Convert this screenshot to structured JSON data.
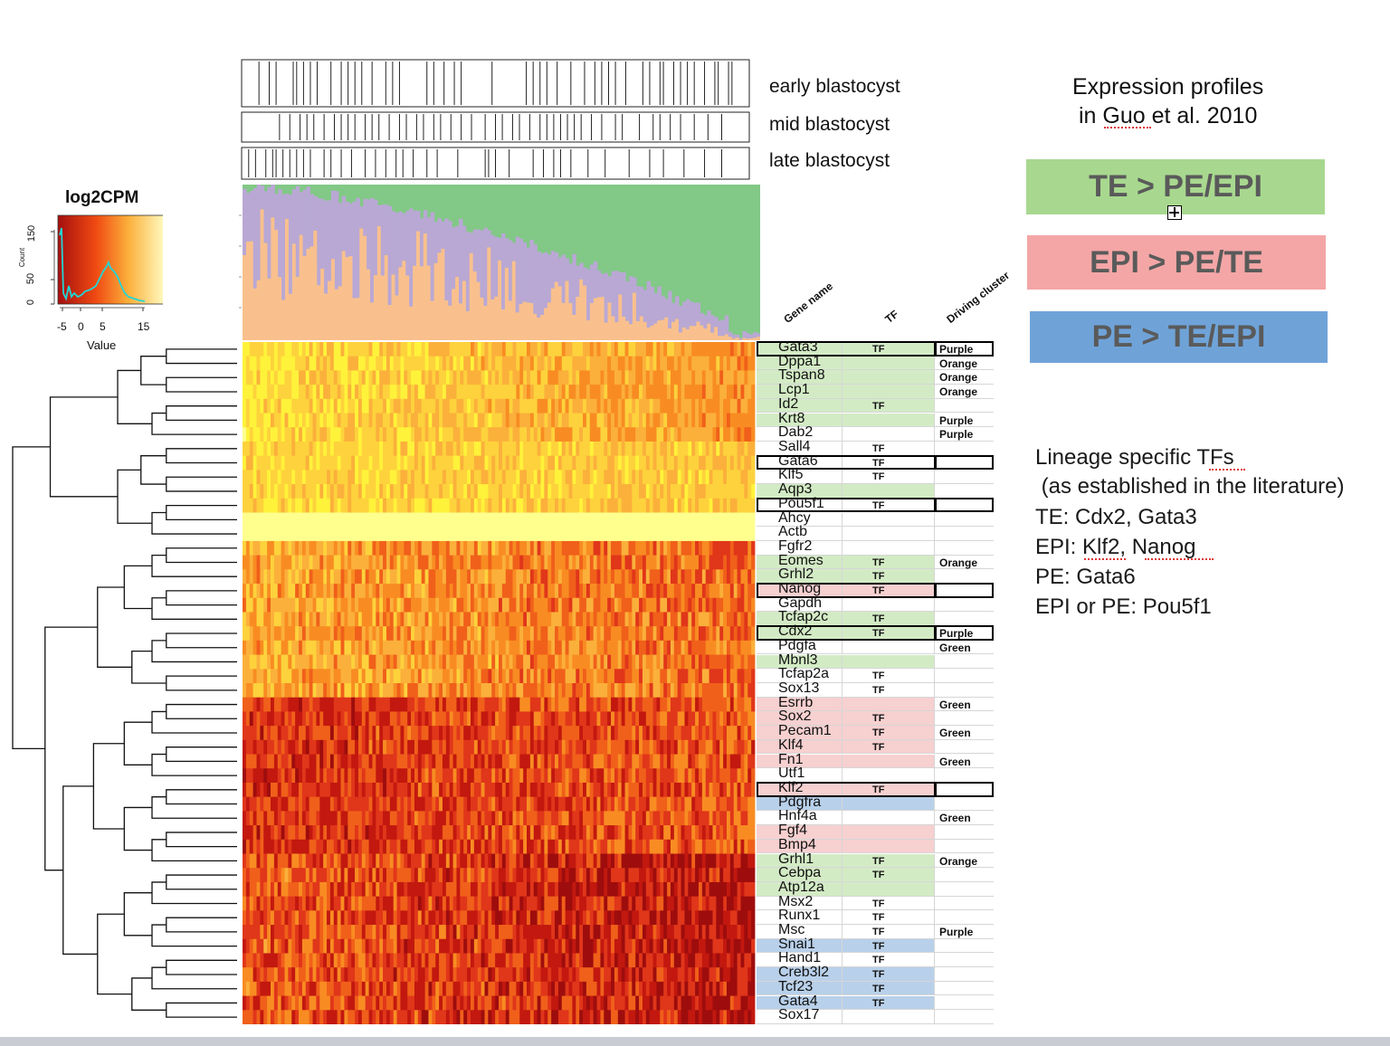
{
  "legend": {
    "title": "log2CPM",
    "xlabel": "Value",
    "ylabel": "Count",
    "xticks": [
      "-5",
      "0",
      "5",
      "15"
    ],
    "yticks": [
      "0",
      "50",
      "150"
    ]
  },
  "stages": [
    {
      "label": "early blastocyst",
      "ticks": [
        4,
        7,
        9,
        14,
        15,
        17,
        19,
        21,
        25,
        28,
        30,
        32,
        34,
        37,
        41,
        43,
        45,
        53,
        55,
        58,
        61,
        63,
        72,
        82,
        84,
        86,
        88,
        91,
        95,
        99,
        102,
        104,
        106,
        108,
        111,
        116,
        118,
        121,
        122,
        125,
        127,
        129,
        131,
        134,
        137,
        138,
        141,
        142
      ]
    },
    {
      "label": "mid blastocyst",
      "ticks": [
        10,
        13,
        16,
        18,
        20,
        23,
        26,
        28,
        30,
        32,
        35,
        37,
        39,
        42,
        45,
        47,
        50,
        52,
        55,
        57,
        60,
        63,
        66,
        70,
        73,
        75,
        78,
        80,
        83,
        86,
        88,
        90,
        92,
        94,
        96,
        98,
        101,
        104,
        108,
        110,
        115,
        119,
        121,
        124,
        127,
        131,
        135,
        139
      ]
    },
    {
      "label": "late blastocyst",
      "ticks": [
        1,
        3,
        6,
        8,
        9,
        11,
        13,
        15,
        17,
        19,
        23,
        25,
        28,
        31,
        35,
        38,
        41,
        44,
        46,
        49,
        53,
        56,
        62,
        70,
        71,
        73,
        77,
        84,
        87,
        90,
        92,
        95,
        100,
        105,
        112,
        118,
        122,
        128,
        134,
        139
      ]
    }
  ],
  "title_box": {
    "line1": "Expression profiles",
    "line2": "in Guo et al. 2010"
  },
  "category_boxes": [
    {
      "label": "TE > PE/EPI",
      "color": "#a8d88f"
    },
    {
      "label": "EPI > PE/TE",
      "color": "#f4a6a6"
    },
    {
      "label": "PE > TE/EPI",
      "color": "#6fa3d8"
    }
  ],
  "notes": [
    "Lineage specific TFs",
    " (as established in the literature)",
    "TE: Cdx2, Gata3",
    "EPI: Klf2, Nanog",
    "PE: Gata6",
    "EPI or PE: Pou5f1"
  ],
  "column_headers": [
    "Gene name",
    "TF",
    "Driving cluster"
  ],
  "colors": {
    "TE": "#d3ebc5",
    "EPI": "#f7d0d0",
    "PE": "#b8d0ea",
    "purple": "#b9a8d4",
    "orange": "#f9c08e",
    "green": "#82c886"
  },
  "chart_data": {
    "type": "heatmap",
    "title": "",
    "color_scale": "log2CPM",
    "genes": [
      {
        "name": "Gata3",
        "tf": "TF",
        "cluster": "Purple",
        "group": "TE",
        "boxed": true
      },
      {
        "name": "Dppa1",
        "tf": "",
        "cluster": "Orange",
        "group": "TE",
        "boxed": false
      },
      {
        "name": "Tspan8",
        "tf": "",
        "cluster": "Orange",
        "group": "TE",
        "boxed": false
      },
      {
        "name": "Lcp1",
        "tf": "",
        "cluster": "Orange",
        "group": "TE",
        "boxed": false
      },
      {
        "name": "Id2",
        "tf": "TF",
        "cluster": "",
        "group": "TE",
        "boxed": false
      },
      {
        "name": "Krt8",
        "tf": "",
        "cluster": "Purple",
        "group": "TE",
        "boxed": false
      },
      {
        "name": "Dab2",
        "tf": "",
        "cluster": "Purple",
        "group": "",
        "boxed": false
      },
      {
        "name": "Sall4",
        "tf": "TF",
        "cluster": "",
        "group": "",
        "boxed": false
      },
      {
        "name": "Gata6",
        "tf": "TF",
        "cluster": "",
        "group": "",
        "boxed": true
      },
      {
        "name": "Klf5",
        "tf": "TF",
        "cluster": "",
        "group": "",
        "boxed": false
      },
      {
        "name": "Aqp3",
        "tf": "",
        "cluster": "",
        "group": "TE",
        "boxed": false
      },
      {
        "name": "Pou5f1",
        "tf": "TF",
        "cluster": "",
        "group": "",
        "boxed": true
      },
      {
        "name": "Ahcy",
        "tf": "",
        "cluster": "",
        "group": "",
        "boxed": false
      },
      {
        "name": "Actb",
        "tf": "",
        "cluster": "",
        "group": "",
        "boxed": false
      },
      {
        "name": "Fgfr2",
        "tf": "",
        "cluster": "",
        "group": "",
        "boxed": false
      },
      {
        "name": "Eomes",
        "tf": "TF",
        "cluster": "Orange",
        "group": "TE",
        "boxed": false
      },
      {
        "name": "Grhl2",
        "tf": "TF",
        "cluster": "",
        "group": "TE",
        "boxed": false
      },
      {
        "name": "Nanog",
        "tf": "TF",
        "cluster": "",
        "group": "EPI",
        "boxed": true
      },
      {
        "name": "Gapdh",
        "tf": "",
        "cluster": "",
        "group": "",
        "boxed": false
      },
      {
        "name": "Tcfap2c",
        "tf": "TF",
        "cluster": "",
        "group": "TE",
        "boxed": false
      },
      {
        "name": "Cdx2",
        "tf": "TF",
        "cluster": "Purple",
        "group": "TE",
        "boxed": true
      },
      {
        "name": "Pdgfa",
        "tf": "",
        "cluster": "Green",
        "group": "",
        "boxed": false
      },
      {
        "name": "Mbnl3",
        "tf": "",
        "cluster": "",
        "group": "TE",
        "boxed": false
      },
      {
        "name": "Tcfap2a",
        "tf": "TF",
        "cluster": "",
        "group": "",
        "boxed": false
      },
      {
        "name": "Sox13",
        "tf": "TF",
        "cluster": "",
        "group": "",
        "boxed": false
      },
      {
        "name": "Esrrb",
        "tf": "",
        "cluster": "Green",
        "group": "EPI",
        "boxed": false
      },
      {
        "name": "Sox2",
        "tf": "TF",
        "cluster": "",
        "group": "EPI",
        "boxed": false
      },
      {
        "name": "Pecam1",
        "tf": "TF",
        "cluster": "Green",
        "group": "EPI",
        "boxed": false
      },
      {
        "name": "Klf4",
        "tf": "TF",
        "cluster": "",
        "group": "EPI",
        "boxed": false
      },
      {
        "name": "Fn1",
        "tf": "",
        "cluster": "Green",
        "group": "EPI",
        "boxed": false
      },
      {
        "name": "Utf1",
        "tf": "",
        "cluster": "",
        "group": "",
        "boxed": false
      },
      {
        "name": "Klf2",
        "tf": "TF",
        "cluster": "",
        "group": "EPI",
        "boxed": true
      },
      {
        "name": "Pdgfra",
        "tf": "",
        "cluster": "",
        "group": "PE",
        "boxed": false
      },
      {
        "name": "Hnf4a",
        "tf": "",
        "cluster": "Green",
        "group": "",
        "boxed": false
      },
      {
        "name": "Fgf4",
        "tf": "",
        "cluster": "",
        "group": "EPI",
        "boxed": false
      },
      {
        "name": "Bmp4",
        "tf": "",
        "cluster": "",
        "group": "EPI",
        "boxed": false
      },
      {
        "name": "Grhl1",
        "tf": "TF",
        "cluster": "Orange",
        "group": "TE",
        "boxed": false
      },
      {
        "name": "Cebpa",
        "tf": "TF",
        "cluster": "",
        "group": "TE",
        "boxed": false
      },
      {
        "name": "Atp12a",
        "tf": "",
        "cluster": "",
        "group": "TE",
        "boxed": false
      },
      {
        "name": "Msx2",
        "tf": "TF",
        "cluster": "",
        "group": "",
        "boxed": false
      },
      {
        "name": "Runx1",
        "tf": "TF",
        "cluster": "",
        "group": "",
        "boxed": false
      },
      {
        "name": "Msc",
        "tf": "TF",
        "cluster": "Purple",
        "group": "",
        "boxed": false
      },
      {
        "name": "Snai1",
        "tf": "TF",
        "cluster": "",
        "group": "PE",
        "boxed": false
      },
      {
        "name": "Hand1",
        "tf": "TF",
        "cluster": "",
        "group": "",
        "boxed": false
      },
      {
        "name": "Creb3l2",
        "tf": "TF",
        "cluster": "",
        "group": "PE",
        "boxed": false
      },
      {
        "name": "Tcf23",
        "tf": "TF",
        "cluster": "",
        "group": "PE",
        "boxed": false
      },
      {
        "name": "Gata4",
        "tf": "TF",
        "cluster": "",
        "group": "PE",
        "boxed": false
      },
      {
        "name": "Sox17",
        "tf": "",
        "cluster": "",
        "group": "",
        "boxed": false
      }
    ]
  }
}
